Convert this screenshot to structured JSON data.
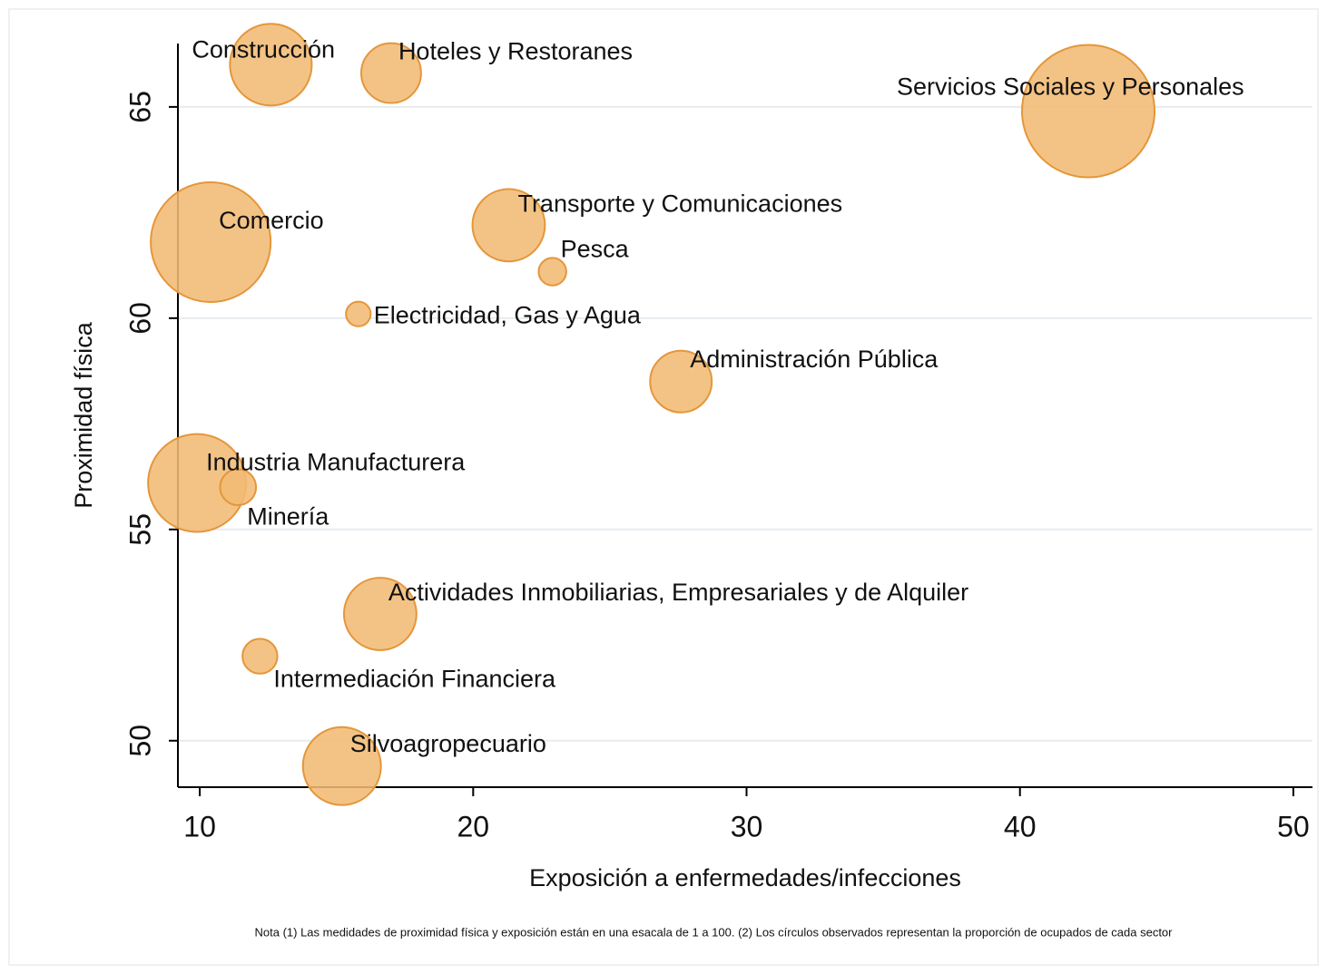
{
  "chart_data": {
    "type": "scatter",
    "x_label": "Exposición a enfermedades/infecciones",
    "y_label": "Proximidad física",
    "note": "Nota (1) Las medidades de proximidad física y exposición están en una esacala de 1 a 100. (2) Los círculos observados representan la proporción de ocupados de cada sector",
    "color": "#f1bb74",
    "edge_color": "#e5963a",
    "xlim": [
      9.2,
      50.7
    ],
    "xticks": [
      10,
      20,
      30,
      40,
      50
    ],
    "ylim": [
      48.9,
      66.5
    ],
    "yticks": [
      50,
      55,
      60,
      65
    ],
    "grid": true,
    "labels": [
      "Construcción",
      "Hoteles y Restoranes",
      "Servicios Sociales y Personales",
      "Comercio",
      "Transporte y Comunicaciones",
      "Pesca",
      "Electricidad, Gas y Agua",
      "Administración Pública",
      "Industria Manufacturera",
      "Minería",
      "Actividades Inmobiliarias, Empresariales y de Alquiler",
      "Intermediación Financiera",
      "Silvoagropecuario"
    ],
    "x": [
      12.6,
      17.0,
      42.5,
      10.4,
      21.3,
      22.9,
      15.8,
      27.6,
      9.9,
      11.4,
      16.6,
      12.2,
      15.2
    ],
    "y": [
      66.0,
      65.8,
      64.9,
      61.8,
      62.2,
      61.1,
      60.1,
      58.5,
      56.1,
      56.0,
      53.0,
      52.0,
      49.4
    ],
    "size": [
      8.8,
      4.7,
      23.1,
      18.9,
      6.9,
      1.0,
      0.8,
      5.0,
      12.6,
      1.7,
      6.9,
      1.6,
      8.0
    ]
  }
}
